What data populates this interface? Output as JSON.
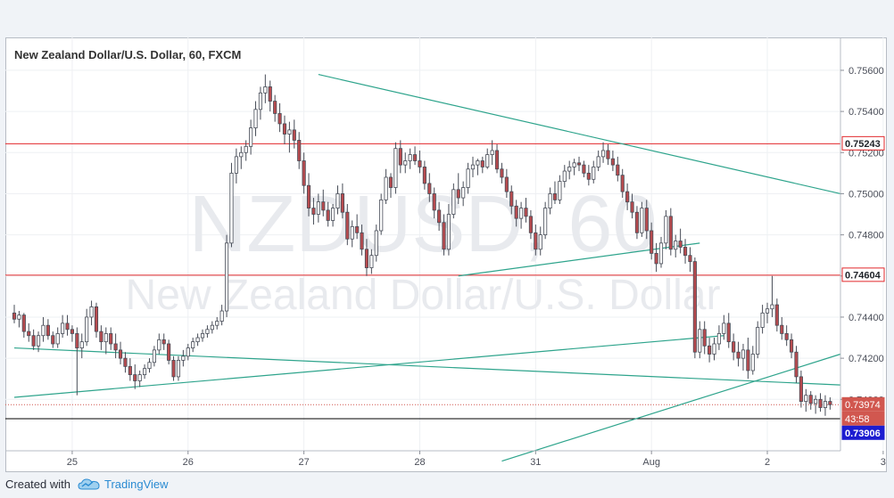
{
  "footer": {
    "created_with": "Created with",
    "brand": "TradingView"
  },
  "colors": {
    "up_fill": "#ffffff",
    "down_fill": "#b74b4f",
    "candle_border": "#474c57",
    "support_resistance": "#e2272b",
    "trendline": "#2ea48c",
    "last_price_badge": "#d1574f",
    "ask_line": "#000000",
    "ask_badge": "#1c1cd0",
    "grid": "#eef0f3",
    "watermark": "#e8eaee"
  },
  "chart_data": {
    "type": "candlestick",
    "title": "New Zealand Dollar/U.S. Dollar, 60, FXCM",
    "watermark_symbol": "NZDUSD, 60",
    "watermark_name": "New Zealand Dollar/U.S. Dollar",
    "ylim": [
      0.7375,
      0.7576
    ],
    "y_ticks": [
      0.754,
      0.752,
      0.75,
      0.748,
      0.746,
      0.744,
      0.742,
      0.74,
      0.756
    ],
    "y_tick_labels": [
      "0.75400",
      "0.75200",
      "0.75000",
      "0.74800",
      "0.74600",
      "0.74400",
      "0.74200",
      "0.74000",
      "0.75600"
    ],
    "x_ticks": [
      {
        "label": "25",
        "i": 12
      },
      {
        "label": "26",
        "i": 36
      },
      {
        "label": "27",
        "i": 60
      },
      {
        "label": "28",
        "i": 84
      },
      {
        "label": "31",
        "i": 108
      },
      {
        "label": "Aug",
        "i": 132
      },
      {
        "label": "2",
        "i": 156
      },
      {
        "label": "3",
        "i": 180
      }
    ],
    "grid": true,
    "price_badges": [
      {
        "label": "0.75243",
        "value": 0.75243,
        "style": "resistance"
      },
      {
        "label": "0.74604",
        "value": 0.74604,
        "style": "resistance"
      },
      {
        "label": "0.73974",
        "value": 0.73974,
        "style": "last"
      },
      {
        "label": "43:58",
        "value": 0.73974,
        "style": "countdown"
      },
      {
        "label": "0.73906",
        "value": 0.73906,
        "style": "ask"
      }
    ],
    "horizontal_lines": [
      {
        "value": 0.75243,
        "kind": "resistance"
      },
      {
        "value": 0.74604,
        "kind": "resistance"
      },
      {
        "value": 0.73974,
        "kind": "last_price_dotted"
      },
      {
        "value": 0.73906,
        "kind": "ask"
      }
    ],
    "trendlines": [
      {
        "x1": 63,
        "y1": 0.7558,
        "x2": 190,
        "y2": 0.75
      },
      {
        "x1": 0,
        "y1": 0.7425,
        "x2": 176,
        "y2": 0.7407
      },
      {
        "x1": 0,
        "y1": 0.7401,
        "x2": 147,
        "y2": 0.7431
      },
      {
        "x1": 92,
        "y1": 0.746,
        "x2": 142,
        "y2": 0.7476
      },
      {
        "x1": 101,
        "y1": 0.737,
        "x2": 174,
        "y2": 0.7422
      }
    ],
    "last_price": 0.73974,
    "candles": [
      [
        0.7442,
        0.7446,
        0.7437,
        0.7439
      ],
      [
        0.7439,
        0.7443,
        0.7435,
        0.7441
      ],
      [
        0.7441,
        0.7442,
        0.743,
        0.7433
      ],
      [
        0.7433,
        0.7437,
        0.7428,
        0.7431
      ],
      [
        0.7431,
        0.7434,
        0.7424,
        0.7426
      ],
      [
        0.7426,
        0.7433,
        0.7423,
        0.7431
      ],
      [
        0.7431,
        0.744,
        0.7428,
        0.7436
      ],
      [
        0.7436,
        0.7439,
        0.7429,
        0.7431
      ],
      [
        0.7431,
        0.7433,
        0.7425,
        0.7427
      ],
      [
        0.7427,
        0.7435,
        0.7425,
        0.7432
      ],
      [
        0.7432,
        0.7441,
        0.743,
        0.7437
      ],
      [
        0.7437,
        0.7441,
        0.7431,
        0.7434
      ],
      [
        0.7434,
        0.7436,
        0.7428,
        0.7432
      ],
      [
        0.7432,
        0.7435,
        0.7402,
        0.7425
      ],
      [
        0.7425,
        0.7432,
        0.742,
        0.7428
      ],
      [
        0.7428,
        0.7444,
        0.7426,
        0.744
      ],
      [
        0.744,
        0.7448,
        0.7436,
        0.7445
      ],
      [
        0.7445,
        0.7447,
        0.743,
        0.7433
      ],
      [
        0.7433,
        0.7436,
        0.7424,
        0.7428
      ],
      [
        0.7428,
        0.7435,
        0.7422,
        0.7432
      ],
      [
        0.7432,
        0.7435,
        0.7424,
        0.7427
      ],
      [
        0.7427,
        0.7432,
        0.742,
        0.7424
      ],
      [
        0.7424,
        0.7428,
        0.7417,
        0.742
      ],
      [
        0.742,
        0.7423,
        0.7413,
        0.7416
      ],
      [
        0.7416,
        0.742,
        0.7409,
        0.7412
      ],
      [
        0.7412,
        0.7417,
        0.7405,
        0.7409
      ],
      [
        0.7409,
        0.7414,
        0.7406,
        0.7412
      ],
      [
        0.7412,
        0.7417,
        0.741,
        0.7415
      ],
      [
        0.7415,
        0.742,
        0.7413,
        0.7418
      ],
      [
        0.7418,
        0.7426,
        0.7416,
        0.7424
      ],
      [
        0.7424,
        0.7432,
        0.7422,
        0.7429
      ],
      [
        0.7429,
        0.7432,
        0.7424,
        0.7427
      ],
      [
        0.7427,
        0.7429,
        0.7417,
        0.7419
      ],
      [
        0.7419,
        0.7421,
        0.7409,
        0.7411
      ],
      [
        0.7411,
        0.7421,
        0.7409,
        0.7419
      ],
      [
        0.7419,
        0.7424,
        0.7416,
        0.7421
      ],
      [
        0.7421,
        0.7427,
        0.7419,
        0.7425
      ],
      [
        0.7425,
        0.743,
        0.7423,
        0.7428
      ],
      [
        0.7428,
        0.7432,
        0.7426,
        0.743
      ],
      [
        0.743,
        0.7434,
        0.7428,
        0.7432
      ],
      [
        0.7432,
        0.7436,
        0.743,
        0.7434
      ],
      [
        0.7434,
        0.7438,
        0.7432,
        0.7436
      ],
      [
        0.7436,
        0.744,
        0.7434,
        0.7438
      ],
      [
        0.7438,
        0.7446,
        0.7436,
        0.7443
      ],
      [
        0.7443,
        0.748,
        0.744,
        0.7476
      ],
      [
        0.7476,
        0.7515,
        0.7474,
        0.751
      ],
      [
        0.751,
        0.7522,
        0.7505,
        0.7518
      ],
      [
        0.7518,
        0.7523,
        0.7512,
        0.752
      ],
      [
        0.752,
        0.7526,
        0.7516,
        0.7523
      ],
      [
        0.7523,
        0.7536,
        0.7519,
        0.7532
      ],
      [
        0.7532,
        0.7545,
        0.7528,
        0.7541
      ],
      [
        0.7541,
        0.7552,
        0.7536,
        0.7549
      ],
      [
        0.7549,
        0.7558,
        0.7544,
        0.7552
      ],
      [
        0.7552,
        0.7555,
        0.754,
        0.7545
      ],
      [
        0.7545,
        0.7548,
        0.7535,
        0.7539
      ],
      [
        0.7539,
        0.7544,
        0.753,
        0.7534
      ],
      [
        0.7534,
        0.7538,
        0.7524,
        0.7529
      ],
      [
        0.7529,
        0.7535,
        0.752,
        0.7531
      ],
      [
        0.7531,
        0.7536,
        0.7522,
        0.7526
      ],
      [
        0.7526,
        0.753,
        0.7512,
        0.7516
      ],
      [
        0.7516,
        0.752,
        0.75,
        0.7504
      ],
      [
        0.7504,
        0.751,
        0.7489,
        0.7493
      ],
      [
        0.7493,
        0.7498,
        0.7485,
        0.749
      ],
      [
        0.749,
        0.75,
        0.7486,
        0.7496
      ],
      [
        0.7496,
        0.7502,
        0.7489,
        0.7492
      ],
      [
        0.7492,
        0.7496,
        0.7484,
        0.7487
      ],
      [
        0.7487,
        0.7495,
        0.7484,
        0.7493
      ],
      [
        0.7493,
        0.7504,
        0.749,
        0.75
      ],
      [
        0.75,
        0.7505,
        0.7488,
        0.7491
      ],
      [
        0.7491,
        0.7495,
        0.7475,
        0.7478
      ],
      [
        0.7478,
        0.7487,
        0.7474,
        0.7484
      ],
      [
        0.7484,
        0.749,
        0.7478,
        0.7481
      ],
      [
        0.7481,
        0.7485,
        0.747,
        0.7473
      ],
      [
        0.7473,
        0.7478,
        0.746,
        0.7464
      ],
      [
        0.7464,
        0.7473,
        0.7461,
        0.747
      ],
      [
        0.747,
        0.7485,
        0.7467,
        0.7482
      ],
      [
        0.7482,
        0.75,
        0.748,
        0.7497
      ],
      [
        0.7497,
        0.7512,
        0.7495,
        0.7508
      ],
      [
        0.7508,
        0.751,
        0.7498,
        0.7503
      ],
      [
        0.7503,
        0.7525,
        0.75,
        0.7522
      ],
      [
        0.7522,
        0.7526,
        0.751,
        0.7514
      ],
      [
        0.7514,
        0.752,
        0.751,
        0.7516
      ],
      [
        0.7516,
        0.7522,
        0.7512,
        0.7519
      ],
      [
        0.7519,
        0.7523,
        0.7514,
        0.7516
      ],
      [
        0.7516,
        0.7521,
        0.751,
        0.7513
      ],
      [
        0.7513,
        0.7516,
        0.7502,
        0.7505
      ],
      [
        0.7505,
        0.751,
        0.7496,
        0.75
      ],
      [
        0.75,
        0.7503,
        0.7488,
        0.7492
      ],
      [
        0.7492,
        0.7496,
        0.7482,
        0.7486
      ],
      [
        0.7486,
        0.749,
        0.747,
        0.7473
      ],
      [
        0.7473,
        0.7495,
        0.747,
        0.749
      ],
      [
        0.749,
        0.7505,
        0.7488,
        0.7502
      ],
      [
        0.7502,
        0.751,
        0.7495,
        0.7498
      ],
      [
        0.7498,
        0.7506,
        0.7494,
        0.7503
      ],
      [
        0.7503,
        0.7515,
        0.75,
        0.7512
      ],
      [
        0.7512,
        0.7518,
        0.7508,
        0.7514
      ],
      [
        0.7514,
        0.7517,
        0.7509,
        0.7516
      ],
      [
        0.7516,
        0.7518,
        0.751,
        0.7513
      ],
      [
        0.7513,
        0.7522,
        0.7512,
        0.7519
      ],
      [
        0.7519,
        0.7526,
        0.7514,
        0.7521
      ],
      [
        0.7521,
        0.7524,
        0.751,
        0.7512
      ],
      [
        0.7512,
        0.7515,
        0.7505,
        0.7508
      ],
      [
        0.7508,
        0.7512,
        0.7498,
        0.7501
      ],
      [
        0.7501,
        0.7504,
        0.749,
        0.7494
      ],
      [
        0.7494,
        0.7497,
        0.7484,
        0.7488
      ],
      [
        0.7488,
        0.7496,
        0.7483,
        0.7493
      ],
      [
        0.7493,
        0.7498,
        0.7486,
        0.7489
      ],
      [
        0.7489,
        0.7492,
        0.7478,
        0.7481
      ],
      [
        0.7481,
        0.7485,
        0.747,
        0.7473
      ],
      [
        0.7473,
        0.7484,
        0.747,
        0.748
      ],
      [
        0.748,
        0.7496,
        0.7478,
        0.7493
      ],
      [
        0.7493,
        0.7503,
        0.749,
        0.75
      ],
      [
        0.75,
        0.7506,
        0.7495,
        0.7497
      ],
      [
        0.7497,
        0.7509,
        0.7495,
        0.7506
      ],
      [
        0.7506,
        0.7514,
        0.7503,
        0.7511
      ],
      [
        0.7511,
        0.7516,
        0.7507,
        0.7513
      ],
      [
        0.7513,
        0.7517,
        0.7509,
        0.7515
      ],
      [
        0.7515,
        0.7518,
        0.7511,
        0.7514
      ],
      [
        0.7514,
        0.7516,
        0.7508,
        0.751
      ],
      [
        0.751,
        0.7514,
        0.7504,
        0.7507
      ],
      [
        0.7507,
        0.7516,
        0.7505,
        0.7513
      ],
      [
        0.7513,
        0.7521,
        0.7511,
        0.7518
      ],
      [
        0.7518,
        0.7525,
        0.7515,
        0.7521
      ],
      [
        0.7521,
        0.7524,
        0.7514,
        0.7517
      ],
      [
        0.7517,
        0.7521,
        0.7511,
        0.7514
      ],
      [
        0.7514,
        0.7518,
        0.7506,
        0.7509
      ],
      [
        0.7509,
        0.7512,
        0.7498,
        0.7501
      ],
      [
        0.7501,
        0.7505,
        0.7492,
        0.7496
      ],
      [
        0.7496,
        0.75,
        0.7488,
        0.7491
      ],
      [
        0.7491,
        0.7494,
        0.7478,
        0.7481
      ],
      [
        0.7481,
        0.7496,
        0.7479,
        0.7493
      ],
      [
        0.7493,
        0.7497,
        0.7478,
        0.7482
      ],
      [
        0.7482,
        0.7486,
        0.7468,
        0.7471
      ],
      [
        0.7471,
        0.7476,
        0.7462,
        0.7466
      ],
      [
        0.7466,
        0.7479,
        0.7464,
        0.7476
      ],
      [
        0.7476,
        0.7492,
        0.7473,
        0.7489
      ],
      [
        0.7489,
        0.7493,
        0.747,
        0.7473
      ],
      [
        0.7473,
        0.748,
        0.7469,
        0.7477
      ],
      [
        0.7477,
        0.7483,
        0.7471,
        0.7474
      ],
      [
        0.7474,
        0.7478,
        0.7466,
        0.747
      ],
      [
        0.747,
        0.7474,
        0.7462,
        0.7467
      ],
      [
        0.7467,
        0.7469,
        0.742,
        0.7423
      ],
      [
        0.7423,
        0.7438,
        0.742,
        0.7434
      ],
      [
        0.7434,
        0.7438,
        0.7422,
        0.7426
      ],
      [
        0.7426,
        0.743,
        0.7418,
        0.7422
      ],
      [
        0.7422,
        0.743,
        0.7419,
        0.7427
      ],
      [
        0.7427,
        0.7436,
        0.7424,
        0.7432
      ],
      [
        0.7432,
        0.7441,
        0.7429,
        0.7437
      ],
      [
        0.7437,
        0.7442,
        0.7425,
        0.7428
      ],
      [
        0.7428,
        0.7432,
        0.7419,
        0.7423
      ],
      [
        0.7423,
        0.7428,
        0.7416,
        0.742
      ],
      [
        0.742,
        0.7427,
        0.7414,
        0.7424
      ],
      [
        0.7424,
        0.743,
        0.741,
        0.7414
      ],
      [
        0.7414,
        0.7426,
        0.7412,
        0.7422
      ],
      [
        0.7422,
        0.7438,
        0.742,
        0.7435
      ],
      [
        0.7435,
        0.7446,
        0.7432,
        0.7442
      ],
      [
        0.7442,
        0.7447,
        0.7437,
        0.7444
      ],
      [
        0.7444,
        0.746,
        0.744,
        0.7446
      ],
      [
        0.7446,
        0.7449,
        0.7433,
        0.7436
      ],
      [
        0.7436,
        0.744,
        0.7429,
        0.7432
      ],
      [
        0.7432,
        0.7436,
        0.7426,
        0.7429
      ],
      [
        0.7429,
        0.7432,
        0.742,
        0.7423
      ],
      [
        0.7423,
        0.7426,
        0.7408,
        0.7411
      ],
      [
        0.7411,
        0.7414,
        0.7396,
        0.7399
      ],
      [
        0.7399,
        0.7405,
        0.7394,
        0.7402
      ],
      [
        0.7402,
        0.7404,
        0.7395,
        0.7398
      ],
      [
        0.7398,
        0.7402,
        0.7393,
        0.74
      ],
      [
        0.74,
        0.7403,
        0.7394,
        0.7396
      ],
      [
        0.7396,
        0.7402,
        0.7392,
        0.7399
      ],
      [
        0.7399,
        0.7401,
        0.7395,
        0.73974
      ]
    ]
  }
}
